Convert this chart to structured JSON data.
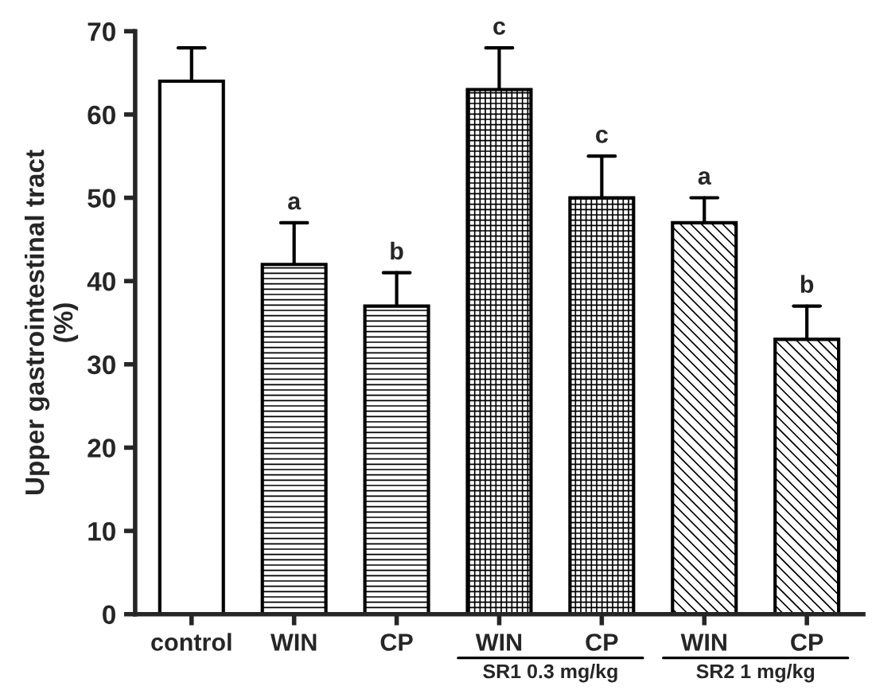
{
  "chart_data": {
    "type": "bar",
    "ylabel": "Upper gastrointestinal tract\n(%)",
    "categories": [
      "control",
      "WIN",
      "CP",
      "WIN",
      "CP",
      "WIN",
      "CP"
    ],
    "values": [
      64,
      42,
      37,
      63,
      50,
      47,
      33
    ],
    "errors": [
      4,
      5,
      4,
      5,
      5,
      3,
      4
    ],
    "value_labels": [
      null,
      "a",
      "b",
      "c",
      "c",
      "a",
      "b"
    ],
    "ylim": [
      0,
      70
    ],
    "yticks": [
      0,
      10,
      20,
      30,
      40,
      50,
      60,
      70
    ],
    "grid": false,
    "annotations": [
      "SR1 0.3 mg/kg",
      "SR2 1 mg/kg"
    ]
  }
}
